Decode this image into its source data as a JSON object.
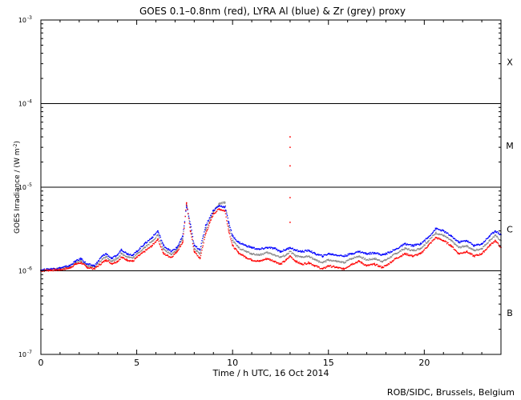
{
  "chart_data": {
    "type": "scatter",
    "title": "GOES 0.1–0.8nm (red), LYRA Al (blue) & Zr (grey) proxy",
    "xlabel": "Time / h UTC, 16 Oct 2014",
    "ylabel_main": "GOES Irradiance / (W m",
    "ylabel_sup": "-2",
    "ylabel_close": ")",
    "credit": "ROB/SIDC, Brussels, Belgium",
    "xlim": [
      0,
      24
    ],
    "ylim": [
      1e-07,
      0.001
    ],
    "yscale": "log",
    "x_ticks": [
      {
        "v": 0,
        "label": "0"
      },
      {
        "v": 5,
        "label": "5"
      },
      {
        "v": 10,
        "label": "10"
      },
      {
        "v": 15,
        "label": "15"
      },
      {
        "v": 20,
        "label": "20"
      }
    ],
    "y_ticks": [
      {
        "exp": -7,
        "base": "10",
        "sup": "-7"
      },
      {
        "exp": -6,
        "base": "10",
        "sup": "-6"
      },
      {
        "exp": -5,
        "base": "10",
        "sup": "-5"
      },
      {
        "exp": -4,
        "base": "10",
        "sup": "-4"
      },
      {
        "exp": -3,
        "base": "10",
        "sup": "-3"
      }
    ],
    "flare_lines": [
      1e-06,
      1e-05,
      0.0001
    ],
    "flare_classes": [
      {
        "label": "X",
        "exp": -3.5
      },
      {
        "label": "M",
        "exp": -4.5
      },
      {
        "label": "C",
        "exp": -5.5
      },
      {
        "label": "B",
        "exp": -6.5
      }
    ],
    "series": [
      {
        "color": "#ff0000",
        "x": [
          0,
          0.5,
          1,
          1.5,
          1.8,
          2.1,
          2.4,
          2.8,
          3.2,
          3.4,
          3.7,
          4.0,
          4.2,
          4.5,
          4.8,
          5.0,
          5.4,
          5.8,
          6.1,
          6.4,
          6.8,
          7.1,
          7.4,
          7.6,
          7.8,
          8.0,
          8.3,
          8.6,
          9.0,
          9.3,
          9.6,
          9.8,
          10.0,
          10.3,
          10.7,
          11.0,
          11.4,
          11.8,
          12.2,
          12.5,
          12.8,
          13.0,
          13.3,
          13.6,
          14.0,
          14.3,
          14.7,
          15.0,
          15.4,
          15.8,
          16.2,
          16.6,
          17.0,
          17.4,
          17.8,
          18.0,
          18.5,
          19.0,
          19.4,
          19.8,
          20.2,
          20.6,
          21.0,
          21.4,
          21.8,
          22.2,
          22.6,
          23.0,
          23.4,
          23.7,
          24.0
        ],
        "y": [
          1e-06,
          1.02e-06,
          1.03e-06,
          1.08e-06,
          1.2e-06,
          1.25e-06,
          1.1e-06,
          1.06e-06,
          1.25e-06,
          1.35e-06,
          1.22e-06,
          1.3e-06,
          1.45e-06,
          1.35e-06,
          1.3e-06,
          1.45e-06,
          1.7e-06,
          2e-06,
          2.4e-06,
          1.6e-06,
          1.45e-06,
          1.7e-06,
          2.2e-06,
          6.5e-06,
          3e-06,
          1.7e-06,
          1.4e-06,
          2.8e-06,
          4.8e-06,
          5.5e-06,
          5.2e-06,
          3e-06,
          2e-06,
          1.65e-06,
          1.45e-06,
          1.35e-06,
          1.3e-06,
          1.4e-06,
          1.3e-06,
          1.2e-06,
          1.35e-06,
          1.5e-06,
          1.3e-06,
          1.2e-06,
          1.25e-06,
          1.15e-06,
          1.05e-06,
          1.15e-06,
          1.1e-06,
          1.05e-06,
          1.2e-06,
          1.3e-06,
          1.15e-06,
          1.2e-06,
          1.1e-06,
          1.15e-06,
          1.4e-06,
          1.6e-06,
          1.5e-06,
          1.6e-06,
          2e-06,
          2.5e-06,
          2.3e-06,
          2e-06,
          1.6e-06,
          1.7e-06,
          1.5e-06,
          1.6e-06,
          2e-06,
          2.3e-06,
          1.9e-06
        ]
      },
      {
        "color": "#0000ff",
        "x": [
          0,
          0.5,
          1,
          1.5,
          1.8,
          2.1,
          2.4,
          2.8,
          3.2,
          3.4,
          3.7,
          4.0,
          4.2,
          4.5,
          4.8,
          5.0,
          5.4,
          5.8,
          6.1,
          6.4,
          6.8,
          7.1,
          7.4,
          7.6,
          7.8,
          8.0,
          8.3,
          8.6,
          9.0,
          9.3,
          9.6,
          9.8,
          10.0,
          10.3,
          10.7,
          11.0,
          11.4,
          11.8,
          12.2,
          12.5,
          12.8,
          13.0,
          13.3,
          13.6,
          14.0,
          14.3,
          14.7,
          15.0,
          15.4,
          15.8,
          16.2,
          16.6,
          17.0,
          17.4,
          17.8,
          18.0,
          18.5,
          19.0,
          19.4,
          19.8,
          20.2,
          20.6,
          21.0,
          21.4,
          21.8,
          22.2,
          22.6,
          23.0,
          23.4,
          23.7,
          24.0
        ],
        "y": [
          1.02e-06,
          1.05e-06,
          1.08e-06,
          1.15e-06,
          1.3e-06,
          1.4e-06,
          1.2e-06,
          1.15e-06,
          1.5e-06,
          1.6e-06,
          1.4e-06,
          1.55e-06,
          1.8e-06,
          1.6e-06,
          1.55e-06,
          1.7e-06,
          2.1e-06,
          2.5e-06,
          3e-06,
          2e-06,
          1.7e-06,
          1.9e-06,
          2.6e-06,
          6e-06,
          3.6e-06,
          2e-06,
          1.8e-06,
          3.5e-06,
          5.3e-06,
          6e-06,
          5.8e-06,
          3.8e-06,
          2.6e-06,
          2.2e-06,
          2e-06,
          1.9e-06,
          1.8e-06,
          1.9e-06,
          1.85e-06,
          1.7e-06,
          1.8e-06,
          1.9e-06,
          1.75e-06,
          1.7e-06,
          1.75e-06,
          1.6e-06,
          1.5e-06,
          1.6e-06,
          1.55e-06,
          1.5e-06,
          1.6e-06,
          1.7e-06,
          1.6e-06,
          1.65e-06,
          1.55e-06,
          1.6e-06,
          1.8e-06,
          2.1e-06,
          2e-06,
          2.1e-06,
          2.5e-06,
          3.2e-06,
          3e-06,
          2.6e-06,
          2.2e-06,
          2.3e-06,
          2e-06,
          2.1e-06,
          2.6e-06,
          3e-06,
          2.7e-06
        ]
      },
      {
        "color": "#888888",
        "x": [
          0,
          0.5,
          1,
          1.5,
          1.8,
          2.1,
          2.4,
          2.8,
          3.2,
          3.4,
          3.7,
          4.0,
          4.2,
          4.5,
          4.8,
          5.0,
          5.4,
          5.8,
          6.1,
          6.4,
          6.8,
          7.1,
          7.4,
          7.6,
          7.8,
          8.0,
          8.3,
          8.6,
          9.0,
          9.3,
          9.6,
          9.8,
          10.0,
          10.3,
          10.7,
          11.0,
          11.4,
          11.8,
          12.2,
          12.5,
          12.8,
          13.0,
          13.3,
          13.6,
          14.0,
          14.3,
          14.7,
          15.0,
          15.4,
          15.8,
          16.2,
          16.6,
          17.0,
          17.4,
          17.8,
          18.0,
          18.5,
          19.0,
          19.4,
          19.8,
          20.2,
          20.6,
          21.0,
          21.4,
          21.8,
          22.2,
          22.6,
          23.0,
          23.4,
          23.7,
          24.0
        ],
        "y": [
          1.01e-06,
          1.04e-06,
          1.06e-06,
          1.12e-06,
          1.25e-06,
          1.32e-06,
          1.15e-06,
          1.1e-06,
          1.38e-06,
          1.48e-06,
          1.3e-06,
          1.42e-06,
          1.6e-06,
          1.48e-06,
          1.42e-06,
          1.58e-06,
          1.9e-06,
          2.25e-06,
          2.7e-06,
          1.8e-06,
          1.58e-06,
          1.8e-06,
          2.4e-06,
          6.3e-06,
          3.3e-06,
          1.85e-06,
          1.6e-06,
          3.1e-06,
          5.1e-06,
          6.3e-06,
          6.6e-06,
          3.4e-06,
          2.3e-06,
          1.9e-06,
          1.7e-06,
          1.6e-06,
          1.55e-06,
          1.65e-06,
          1.55e-06,
          1.45e-06,
          1.55e-06,
          1.7e-06,
          1.5e-06,
          1.45e-06,
          1.5e-06,
          1.35e-06,
          1.25e-06,
          1.35e-06,
          1.3e-06,
          1.25e-06,
          1.4e-06,
          1.5e-06,
          1.35e-06,
          1.4e-06,
          1.3e-06,
          1.35e-06,
          1.6e-06,
          1.85e-06,
          1.75e-06,
          1.85e-06,
          2.25e-06,
          2.85e-06,
          2.65e-06,
          2.3e-06,
          1.9e-06,
          2e-06,
          1.75e-06,
          1.85e-06,
          2.3e-06,
          2.65e-06,
          2.3e-06
        ]
      }
    ],
    "spike": {
      "color": "#ff0000",
      "x": 13.0,
      "y": [
        4e-05,
        3e-05,
        1.8e-05,
        7.5e-06,
        3.8e-06
      ]
    }
  }
}
